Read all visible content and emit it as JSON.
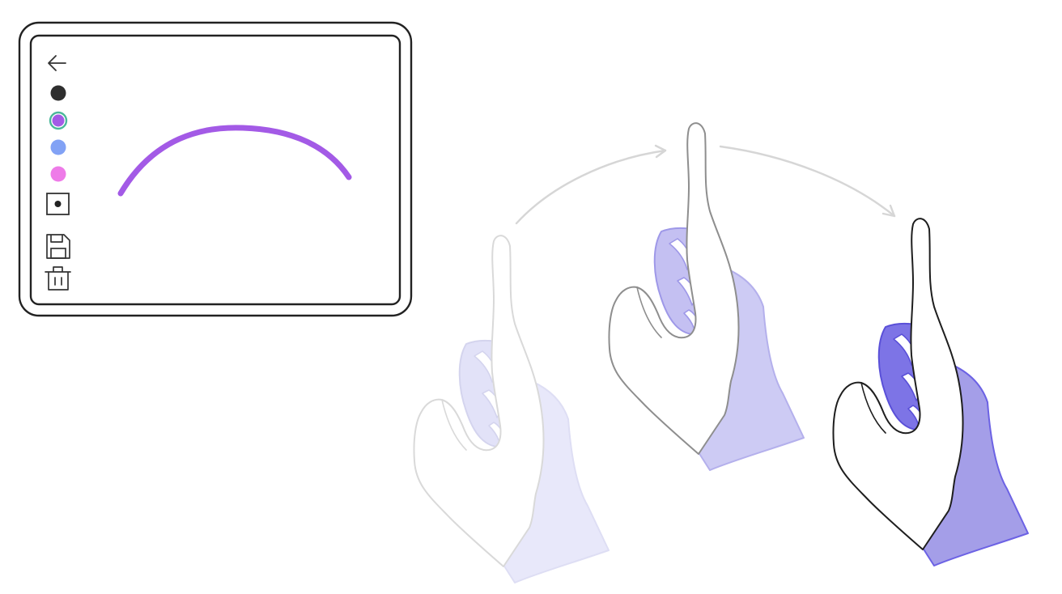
{
  "canvas": {
    "stroke_color": "#a35ae6",
    "palette": [
      {
        "name": "black",
        "color": "#2f2f2f",
        "selected": false
      },
      {
        "name": "purple",
        "color": "#a35ae6",
        "selected": true
      },
      {
        "name": "blue",
        "color": "#82a2f5",
        "selected": false
      },
      {
        "name": "pink",
        "color": "#ee7be8",
        "selected": false
      }
    ],
    "selected_ring_color": "#4bb79a",
    "toolbar_icons": [
      "back-arrow-icon",
      "brush-size-icon",
      "save-icon",
      "trash-icon"
    ]
  },
  "gesture": {
    "frames": [
      "faded",
      "mid",
      "current"
    ],
    "accent_color": "#6c62e4"
  }
}
